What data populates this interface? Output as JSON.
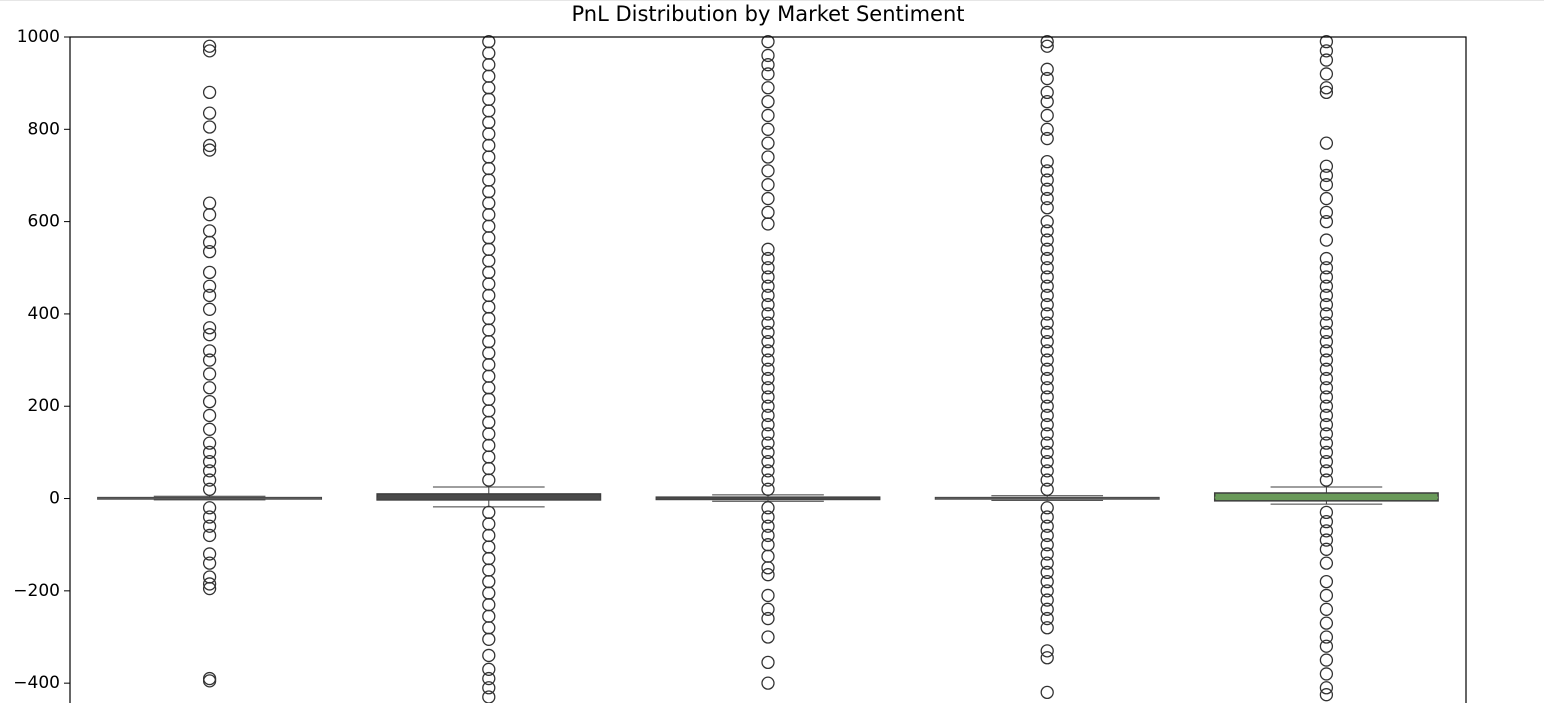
{
  "chart_data": {
    "type": "box",
    "title": "PnL Distribution by Market Sentiment",
    "categories": [
      null,
      null,
      null,
      null,
      null
    ],
    "ylim": [
      -443,
      1000
    ],
    "yticks": [
      -400,
      -200,
      0,
      200,
      400,
      600,
      800,
      1000
    ],
    "ytick_labels": [
      "−400",
      "−200",
      "0",
      "200",
      "400",
      "600",
      "800",
      "1000"
    ],
    "line_color": "#3d3d3d",
    "colors": [
      "#5a5a5a",
      "#4a4a4a",
      "#4a4a4a",
      "#5a5a5a",
      "#6a9a5a"
    ],
    "boxes": [
      {
        "q1": -1,
        "median": 0,
        "q3": 2,
        "whislo": -3,
        "whishi": 5,
        "outliers": [
          980,
          970,
          880,
          835,
          805,
          765,
          755,
          640,
          615,
          580,
          555,
          535,
          490,
          460,
          440,
          410,
          370,
          355,
          320,
          300,
          270,
          240,
          210,
          180,
          150,
          120,
          100,
          80,
          60,
          40,
          20,
          -20,
          -40,
          -60,
          -80,
          -120,
          -140,
          -170,
          -185,
          -195,
          -390,
          -395
        ]
      },
      {
        "q1": -3,
        "median": 0,
        "q3": 10,
        "whislo": -18,
        "whishi": 25,
        "outliers": [
          990,
          965,
          940,
          915,
          890,
          865,
          840,
          815,
          790,
          765,
          740,
          715,
          690,
          665,
          640,
          615,
          590,
          565,
          540,
          515,
          490,
          465,
          440,
          415,
          390,
          365,
          340,
          315,
          290,
          265,
          240,
          215,
          190,
          165,
          140,
          115,
          90,
          65,
          40,
          -30,
          -55,
          -80,
          -105,
          -130,
          -155,
          -180,
          -205,
          -230,
          -255,
          -280,
          -305,
          -340,
          -370,
          -390,
          -410,
          -430
        ]
      },
      {
        "q1": -2,
        "median": 0,
        "q3": 3,
        "whislo": -6,
        "whishi": 8,
        "outliers": [
          990,
          960,
          940,
          920,
          890,
          860,
          830,
          800,
          770,
          740,
          710,
          680,
          650,
          620,
          595,
          540,
          520,
          500,
          480,
          460,
          440,
          420,
          400,
          380,
          360,
          340,
          320,
          300,
          280,
          260,
          240,
          220,
          200,
          180,
          160,
          140,
          120,
          100,
          80,
          60,
          40,
          20,
          -20,
          -40,
          -60,
          -80,
          -100,
          -125,
          -150,
          -165,
          -210,
          -240,
          -260,
          -300,
          -355,
          -400
        ]
      },
      {
        "q1": -1,
        "median": 0,
        "q3": 2,
        "whislo": -4,
        "whishi": 6,
        "outliers": [
          990,
          980,
          930,
          910,
          880,
          860,
          830,
          800,
          780,
          730,
          710,
          690,
          670,
          650,
          630,
          600,
          580,
          560,
          540,
          520,
          500,
          480,
          460,
          440,
          420,
          400,
          380,
          360,
          340,
          320,
          300,
          280,
          260,
          240,
          220,
          200,
          180,
          160,
          140,
          120,
          100,
          80,
          60,
          40,
          20,
          -20,
          -40,
          -60,
          -80,
          -100,
          -120,
          -140,
          -160,
          -180,
          -200,
          -220,
          -240,
          -260,
          -280,
          -330,
          -345,
          -420
        ]
      },
      {
        "q1": -5,
        "median": 2,
        "q3": 12,
        "whislo": -12,
        "whishi": 25,
        "outliers": [
          990,
          970,
          950,
          920,
          890,
          880,
          770,
          720,
          700,
          680,
          650,
          620,
          600,
          560,
          520,
          500,
          480,
          460,
          440,
          420,
          400,
          380,
          360,
          340,
          320,
          300,
          280,
          260,
          240,
          220,
          200,
          180,
          160,
          140,
          120,
          100,
          80,
          60,
          40,
          -30,
          -50,
          -70,
          -90,
          -110,
          -140,
          -180,
          -210,
          -240,
          -270,
          -300,
          -320,
          -350,
          -380,
          -410,
          -425
        ]
      }
    ]
  }
}
